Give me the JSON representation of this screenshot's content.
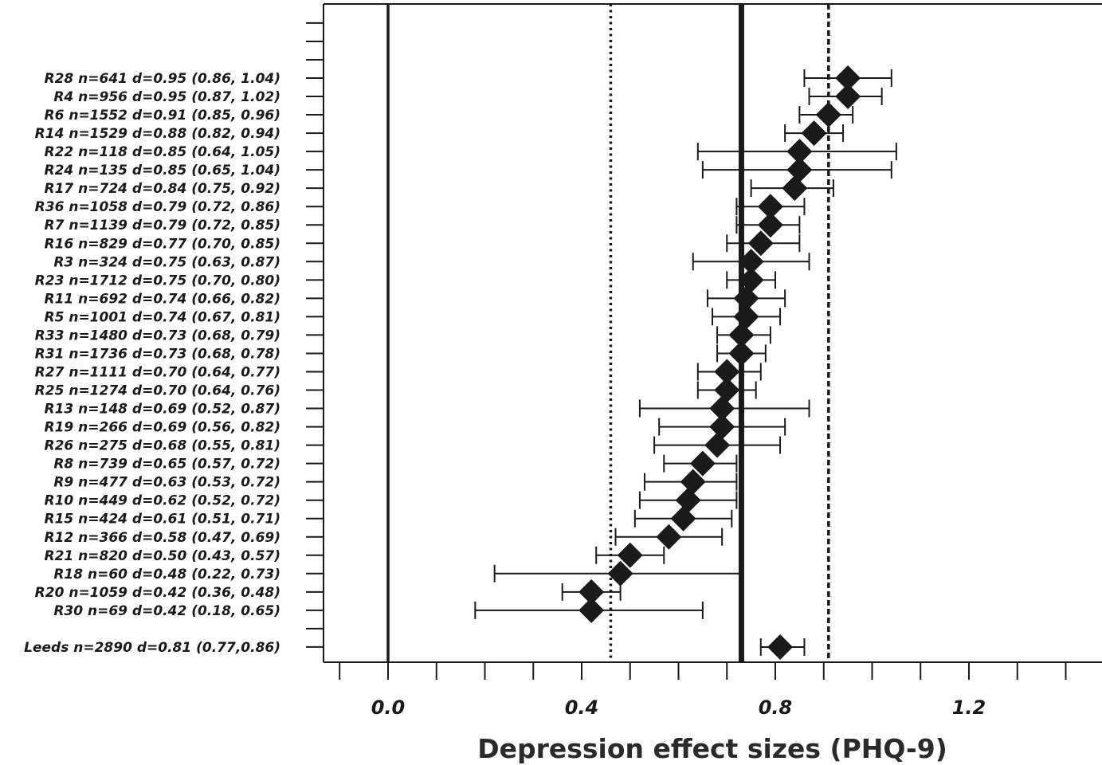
{
  "chart_data": {
    "type": "forest",
    "xlabel": "Depression effect sizes (PHQ-9)",
    "xlim": [
      -0.13,
      1.47
    ],
    "x_ticks": [
      0.0,
      0.4,
      0.8,
      1.2
    ],
    "x_tick_labels": [
      "0.0",
      "0.4",
      "0.8",
      "1.2"
    ],
    "x_minor_ticks": [
      -0.1,
      0.1,
      0.2,
      0.3,
      0.5,
      0.6,
      0.7,
      0.9,
      1.0,
      1.1,
      1.3,
      1.4
    ],
    "reference_lines": [
      {
        "value": 0.0,
        "style": "solid"
      },
      {
        "value": 0.46,
        "style": "dotted"
      },
      {
        "value": 0.73,
        "style": "thick-solid"
      },
      {
        "value": 0.91,
        "style": "dashed"
      }
    ],
    "grid": false,
    "rows": [
      {
        "label": "R28 n=641 d=0.95 (0.86, 1.04)",
        "d": 0.95,
        "lo": 0.86,
        "hi": 1.04
      },
      {
        "label": "R4 n=956 d=0.95 (0.87, 1.02)",
        "d": 0.95,
        "lo": 0.87,
        "hi": 1.02
      },
      {
        "label": "R6 n=1552 d=0.91 (0.85, 0.96)",
        "d": 0.91,
        "lo": 0.85,
        "hi": 0.96
      },
      {
        "label": "R14 n=1529 d=0.88 (0.82, 0.94)",
        "d": 0.88,
        "lo": 0.82,
        "hi": 0.94
      },
      {
        "label": "R22 n=118 d=0.85 (0.64, 1.05)",
        "d": 0.85,
        "lo": 0.64,
        "hi": 1.05
      },
      {
        "label": "R24 n=135 d=0.85 (0.65, 1.04)",
        "d": 0.85,
        "lo": 0.65,
        "hi": 1.04
      },
      {
        "label": "R17 n=724 d=0.84 (0.75, 0.92)",
        "d": 0.84,
        "lo": 0.75,
        "hi": 0.92
      },
      {
        "label": "R36 n=1058 d=0.79 (0.72, 0.86)",
        "d": 0.79,
        "lo": 0.72,
        "hi": 0.86
      },
      {
        "label": "R7 n=1139 d=0.79 (0.72, 0.85)",
        "d": 0.79,
        "lo": 0.72,
        "hi": 0.85
      },
      {
        "label": "R16 n=829 d=0.77 (0.70, 0.85)",
        "d": 0.77,
        "lo": 0.7,
        "hi": 0.85
      },
      {
        "label": "R3 n=324 d=0.75 (0.63, 0.87)",
        "d": 0.75,
        "lo": 0.63,
        "hi": 0.87
      },
      {
        "label": "R23 n=1712 d=0.75 (0.70, 0.80)",
        "d": 0.75,
        "lo": 0.7,
        "hi": 0.8
      },
      {
        "label": "R11 n=692 d=0.74 (0.66, 0.82)",
        "d": 0.74,
        "lo": 0.66,
        "hi": 0.82
      },
      {
        "label": "R5 n=1001 d=0.74 (0.67, 0.81)",
        "d": 0.74,
        "lo": 0.67,
        "hi": 0.81
      },
      {
        "label": "R33 n=1480 d=0.73 (0.68, 0.79)",
        "d": 0.73,
        "lo": 0.68,
        "hi": 0.79
      },
      {
        "label": "R31 n=1736 d=0.73 (0.68, 0.78)",
        "d": 0.73,
        "lo": 0.68,
        "hi": 0.78
      },
      {
        "label": "R27 n=1111 d=0.70 (0.64, 0.77)",
        "d": 0.7,
        "lo": 0.64,
        "hi": 0.77
      },
      {
        "label": "R25 n=1274 d=0.70 (0.64, 0.76)",
        "d": 0.7,
        "lo": 0.64,
        "hi": 0.76
      },
      {
        "label": "R13 n=148 d=0.69 (0.52, 0.87)",
        "d": 0.69,
        "lo": 0.52,
        "hi": 0.87
      },
      {
        "label": "R19 n=266 d=0.69 (0.56, 0.82)",
        "d": 0.69,
        "lo": 0.56,
        "hi": 0.82
      },
      {
        "label": "R26 n=275 d=0.68 (0.55, 0.81)",
        "d": 0.68,
        "lo": 0.55,
        "hi": 0.81
      },
      {
        "label": "R8 n=739 d=0.65 (0.57, 0.72)",
        "d": 0.65,
        "lo": 0.57,
        "hi": 0.72
      },
      {
        "label": "R9 n=477 d=0.63 (0.53, 0.72)",
        "d": 0.63,
        "lo": 0.53,
        "hi": 0.72
      },
      {
        "label": "R10 n=449 d=0.62 (0.52, 0.72)",
        "d": 0.62,
        "lo": 0.52,
        "hi": 0.72
      },
      {
        "label": "R15 n=424 d=0.61 (0.51, 0.71)",
        "d": 0.61,
        "lo": 0.51,
        "hi": 0.71
      },
      {
        "label": "R12 n=366 d=0.58 (0.47, 0.69)",
        "d": 0.58,
        "lo": 0.47,
        "hi": 0.69
      },
      {
        "label": "R21 n=820 d=0.50 (0.43, 0.57)",
        "d": 0.5,
        "lo": 0.43,
        "hi": 0.57
      },
      {
        "label": "R18 n=60 d=0.48 (0.22, 0.73)",
        "d": 0.48,
        "lo": 0.22,
        "hi": 0.73
      },
      {
        "label": "R20 n=1059 d=0.42 (0.36, 0.48)",
        "d": 0.42,
        "lo": 0.36,
        "hi": 0.48
      },
      {
        "label": "R30 n=69 d=0.42 (0.18, 0.65)",
        "d": 0.42,
        "lo": 0.18,
        "hi": 0.65
      }
    ],
    "summary_row": {
      "label": "Leeds n=2890 d=0.81 (0.77,0.86)",
      "d": 0.81,
      "lo": 0.77,
      "hi": 0.86
    },
    "colors": {
      "mark": "#1a1a1a",
      "axis": "#1a1a1a"
    }
  }
}
